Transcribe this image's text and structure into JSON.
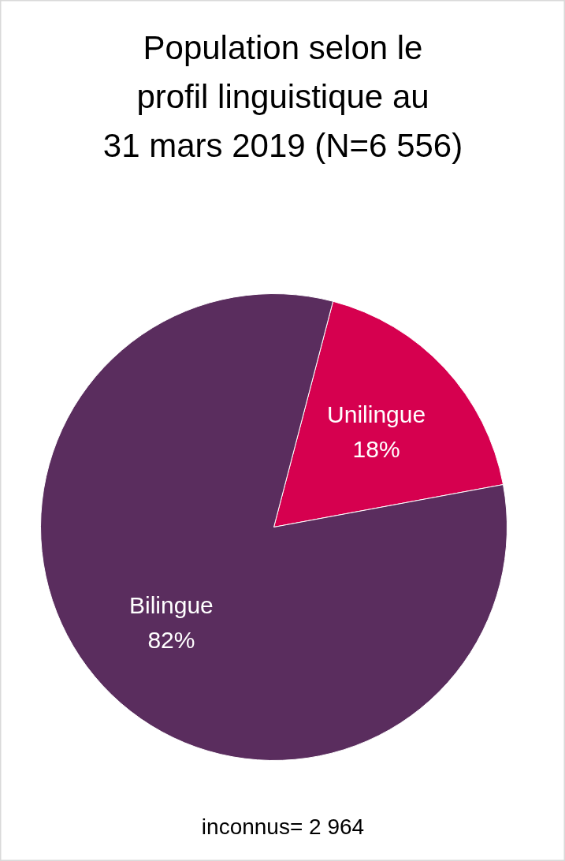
{
  "chart_data": {
    "type": "pie",
    "title": "Population selon le profil linguistique au 31 mars 2019 (N=6 556)",
    "categories": [
      "Unilingue",
      "Bilingue"
    ],
    "values": [
      18,
      82
    ],
    "colors": [
      "#d6004f",
      "#5a2d5e"
    ],
    "value_labels": [
      "18%",
      "82%"
    ],
    "annotations": [
      "inconnus= 2 964"
    ]
  }
}
